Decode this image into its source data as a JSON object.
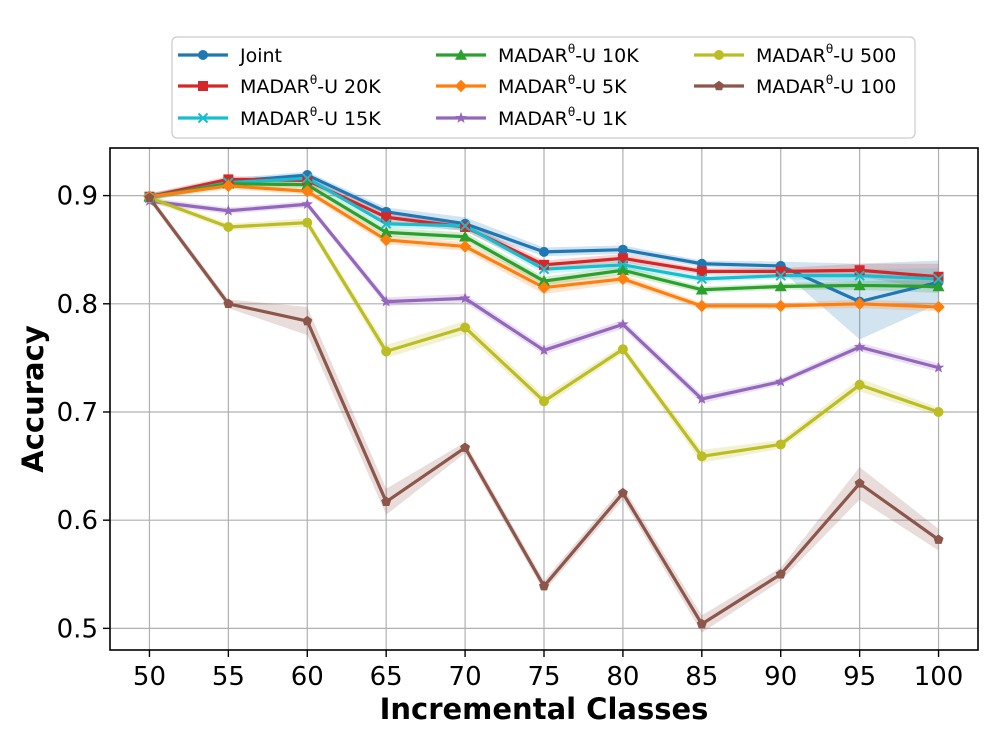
{
  "chart_data": {
    "type": "line",
    "title": "",
    "xlabel": "Incremental Classes",
    "ylabel": "Accuracy",
    "x": [
      50,
      55,
      60,
      65,
      70,
      75,
      80,
      85,
      90,
      95,
      100
    ],
    "xlim": [
      47.5,
      102.5
    ],
    "ylim": [
      0.48,
      0.944
    ],
    "y_ticks": [
      0.5,
      0.6,
      0.7,
      0.8,
      0.9
    ],
    "y_tick_labels": [
      "0.5",
      "0.6",
      "0.7",
      "0.8",
      "0.9"
    ],
    "x_tick_labels": [
      "50",
      "55",
      "60",
      "65",
      "70",
      "75",
      "80",
      "85",
      "90",
      "95",
      "100"
    ],
    "grid": true,
    "legend_position": "top-center",
    "series": [
      {
        "name": "Joint",
        "label_base": "Joint",
        "label_sup": "",
        "label_rest": "",
        "color": "#1f77b4",
        "marker": "circle",
        "values": [
          0.899,
          0.913,
          0.919,
          0.885,
          0.874,
          0.848,
          0.85,
          0.837,
          0.835,
          0.802,
          0.82
        ],
        "band": [
          0.003,
          0.003,
          0.003,
          0.004,
          0.006,
          0.004,
          0.004,
          0.003,
          0.004,
          0.035,
          0.02
        ]
      },
      {
        "name": "MADAR-U 20K",
        "label_base": "MADAR",
        "label_sup": "θ",
        "label_rest": "-U 20K",
        "color": "#d62728",
        "marker": "square",
        "values": [
          0.899,
          0.915,
          0.914,
          0.88,
          0.871,
          0.836,
          0.842,
          0.83,
          0.83,
          0.831,
          0.825
        ],
        "band": [
          0.003,
          0.003,
          0.003,
          0.004,
          0.004,
          0.004,
          0.004,
          0.003,
          0.003,
          0.006,
          0.012
        ]
      },
      {
        "name": "MADAR-U 15K",
        "label_base": "MADAR",
        "label_sup": "θ",
        "label_rest": "-U 15K",
        "color": "#17becf",
        "marker": "x",
        "values": [
          0.898,
          0.912,
          0.916,
          0.874,
          0.872,
          0.832,
          0.836,
          0.823,
          0.826,
          0.826,
          0.823
        ],
        "band": [
          0.003,
          0.003,
          0.003,
          0.004,
          0.004,
          0.004,
          0.004,
          0.003,
          0.003,
          0.006,
          0.01
        ]
      },
      {
        "name": "MADAR-U 10K",
        "label_base": "MADAR",
        "label_sup": "θ",
        "label_rest": "-U 10K",
        "color": "#2ca02c",
        "marker": "triangle",
        "values": [
          0.899,
          0.911,
          0.91,
          0.866,
          0.862,
          0.821,
          0.831,
          0.813,
          0.816,
          0.817,
          0.816
        ],
        "band": [
          0.003,
          0.003,
          0.003,
          0.004,
          0.004,
          0.004,
          0.004,
          0.003,
          0.003,
          0.004,
          0.006
        ]
      },
      {
        "name": "MADAR-U 5K",
        "label_base": "MADAR",
        "label_sup": "θ",
        "label_rest": "-U 5K",
        "color": "#ff7f0e",
        "marker": "diamond",
        "values": [
          0.899,
          0.909,
          0.904,
          0.859,
          0.853,
          0.815,
          0.823,
          0.798,
          0.798,
          0.8,
          0.797
        ],
        "band": [
          0.003,
          0.003,
          0.003,
          0.004,
          0.004,
          0.006,
          0.004,
          0.003,
          0.003,
          0.004,
          0.004
        ]
      },
      {
        "name": "MADAR-U 1K",
        "label_base": "MADAR",
        "label_sup": "θ",
        "label_rest": "-U 1K",
        "color": "#9467bd",
        "marker": "star",
        "values": [
          0.895,
          0.886,
          0.892,
          0.802,
          0.805,
          0.757,
          0.781,
          0.712,
          0.728,
          0.76,
          0.741
        ],
        "band": [
          0.003,
          0.003,
          0.003,
          0.004,
          0.004,
          0.004,
          0.004,
          0.004,
          0.003,
          0.004,
          0.004
        ]
      },
      {
        "name": "MADAR-U 500",
        "label_base": "MADAR",
        "label_sup": "θ",
        "label_rest": "-U 500",
        "color": "#bcbd22",
        "marker": "circle",
        "values": [
          0.898,
          0.871,
          0.875,
          0.756,
          0.778,
          0.71,
          0.758,
          0.659,
          0.67,
          0.725,
          0.7
        ],
        "band": [
          0.003,
          0.003,
          0.004,
          0.006,
          0.006,
          0.005,
          0.004,
          0.006,
          0.004,
          0.006,
          0.004
        ]
      },
      {
        "name": "MADAR-U 100",
        "label_base": "MADAR",
        "label_sup": "θ",
        "label_rest": "-U 100",
        "color": "#8c564b",
        "marker": "pentagon",
        "values": [
          0.898,
          0.8,
          0.784,
          0.617,
          0.667,
          0.539,
          0.625,
          0.504,
          0.55,
          0.634,
          0.582
        ],
        "band": [
          0.003,
          0.004,
          0.013,
          0.012,
          0.005,
          0.005,
          0.006,
          0.008,
          0.006,
          0.015,
          0.01
        ]
      }
    ]
  }
}
